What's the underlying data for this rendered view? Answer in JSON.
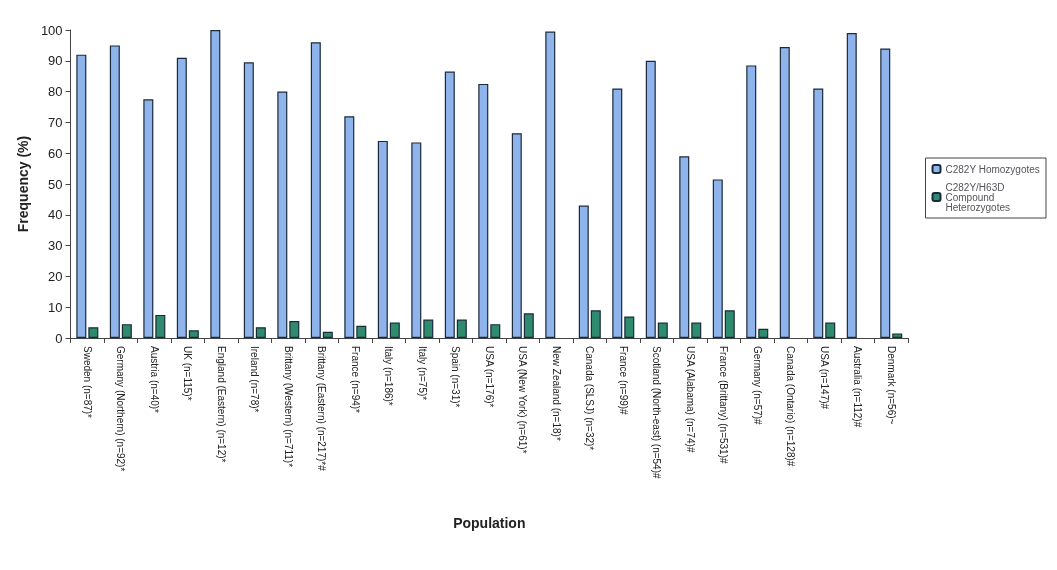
{
  "chart_data": {
    "type": "bar",
    "xlabel": "Population",
    "ylabel": "Frequency (%)",
    "categories": [
      "Sweden (n=87)*",
      "Germany (Northern) (n=92)*",
      "Austria (n=40)*",
      "UK (n=115)*",
      "England (Eastern) (n=12)*",
      "Ireland (n=78)*",
      "Brittany (Western) (n=711)*",
      "Brittany (Eastern) (n=217)*#",
      "France (n=94)*",
      "Italy (n=186)*",
      "Italy (n=75)*",
      "Spain (n=31)*",
      "USA (n=176)*",
      "USA (New York) (n=61)*",
      "New Zealand (n=18)*",
      "Canada (SLSJ) (n=32)*",
      "France (n=99)#",
      "Scotland (North-east) (n=54)#",
      "USA (Alabama) (n=74)#",
      "France (Brittany) (n=531)#",
      "Germany (n=57)#",
      "Canada (Ontario) (n=128)#",
      "USA (n=147)#",
      "Australia (n=112)#",
      "Denmark (n=56)~"
    ],
    "series": [
      {
        "name": "C282Y Homozygotes",
        "color": "#8fb4ec",
        "values": [
          92,
          95,
          77.5,
          91,
          100,
          89.5,
          80,
          96,
          72,
          64,
          63.5,
          86.5,
          82.5,
          66.5,
          99.5,
          43,
          81,
          90,
          59,
          51.5,
          88.5,
          94.5,
          81,
          99,
          94
        ]
      },
      {
        "name": "C282Y/H63D Compound Heterozygotes",
        "color": "#2e8b6e",
        "values": [
          3.5,
          4.5,
          7.5,
          2.5,
          0,
          3.5,
          5.5,
          2,
          4,
          5,
          6,
          6,
          4.5,
          8,
          0,
          9,
          7,
          5,
          5,
          9,
          3,
          0,
          5,
          0,
          1.5
        ]
      }
    ],
    "ylim": [
      0,
      100
    ],
    "yticks": [
      0,
      10,
      20,
      30,
      40,
      50,
      60,
      70,
      80,
      90,
      100
    ],
    "grid": false,
    "legend": "right"
  }
}
